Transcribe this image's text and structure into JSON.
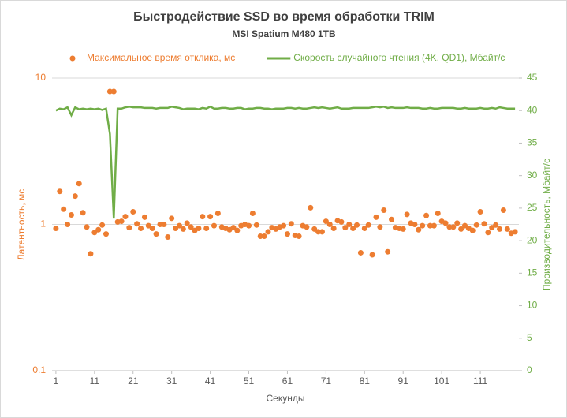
{
  "chart_data": {
    "type": "combo",
    "title": "Быстродействие SSD во время обработки TRIM",
    "subtitle": "MSI Spatium M480 1TB",
    "x_label": "Секунды",
    "y_label": "Латентность, мс",
    "y2_label": "Производительность, Мбайт/с",
    "x": [
      1,
      2,
      3,
      4,
      5,
      6,
      7,
      8,
      9,
      10,
      11,
      12,
      13,
      14,
      15,
      16,
      17,
      18,
      19,
      20,
      21,
      22,
      23,
      24,
      25,
      26,
      27,
      28,
      29,
      30,
      31,
      32,
      33,
      34,
      35,
      36,
      37,
      38,
      39,
      40,
      41,
      42,
      43,
      44,
      45,
      46,
      47,
      48,
      49,
      50,
      51,
      52,
      53,
      54,
      55,
      56,
      57,
      58,
      59,
      60,
      61,
      62,
      63,
      64,
      65,
      66,
      67,
      68,
      69,
      70,
      71,
      72,
      73,
      74,
      75,
      76,
      77,
      78,
      79,
      80,
      81,
      82,
      83,
      84,
      85,
      86,
      87,
      88,
      89,
      90,
      91,
      92,
      93,
      94,
      95,
      96,
      97,
      98,
      99,
      100,
      101,
      102,
      103,
      104,
      105,
      106,
      107,
      108,
      109,
      110,
      111,
      112,
      113,
      114,
      115,
      116,
      117,
      118,
      119,
      120
    ],
    "xlim": [
      0,
      121
    ],
    "xticks": [
      1,
      11,
      21,
      31,
      41,
      51,
      61,
      71,
      81,
      91,
      101,
      111
    ],
    "ylim": [
      0.1,
      10
    ],
    "ylog": true,
    "yticks": [
      0.1,
      1,
      10
    ],
    "y2lim": [
      0,
      45
    ],
    "y2ticks": [
      0,
      5,
      10,
      15,
      20,
      25,
      30,
      35,
      40,
      45
    ],
    "grid": true,
    "series": [
      {
        "name": "Максимальное время отклика, мс",
        "type": "scatter",
        "color": "#ed7d31",
        "values": [
          0.94,
          1.68,
          1.27,
          1.0,
          1.16,
          1.56,
          1.9,
          1.2,
          0.96,
          0.63,
          0.88,
          0.92,
          0.99,
          0.86,
          8.1,
          8.1,
          1.04,
          1.05,
          1.13,
          0.95,
          1.22,
          1.01,
          0.94,
          1.12,
          0.98,
          0.94,
          0.86,
          1.0,
          1.0,
          0.82,
          1.1,
          0.94,
          0.98,
          0.93,
          1.02,
          0.96,
          0.91,
          0.94,
          1.13,
          0.94,
          1.13,
          0.98,
          1.19,
          0.96,
          0.94,
          0.92,
          0.95,
          0.91,
          0.98,
          1.0,
          0.98,
          1.19,
          0.99,
          0.83,
          0.83,
          0.89,
          0.95,
          0.93,
          0.96,
          0.98,
          0.86,
          1.01,
          0.84,
          0.83,
          0.98,
          0.96,
          1.3,
          0.93,
          0.89,
          0.89,
          1.05,
          1.0,
          0.94,
          1.06,
          1.04,
          0.95,
          1.0,
          0.94,
          0.99,
          0.64,
          0.94,
          0.99,
          0.62,
          1.12,
          0.96,
          1.25,
          0.65,
          1.08,
          0.95,
          0.94,
          0.93,
          1.17,
          1.02,
          1.0,
          0.92,
          0.98,
          1.15,
          0.98,
          0.98,
          1.19,
          1.05,
          1.02,
          0.96,
          0.96,
          1.02,
          0.93,
          0.98,
          0.94,
          0.91,
          0.99,
          1.22,
          1.01,
          0.88,
          0.95,
          0.99,
          0.93,
          1.25,
          0.93,
          0.87,
          0.89
        ]
      },
      {
        "name": "Скорость случайного чтения (4K, QD1), Мбайт/с",
        "type": "line",
        "axis": "y2",
        "color": "#70ad47",
        "values": [
          40.0,
          40.3,
          40.2,
          40.5,
          39.3,
          40.5,
          40.2,
          40.3,
          40.2,
          40.3,
          40.2,
          40.3,
          40.1,
          40.3,
          36.4,
          23.4,
          40.3,
          40.3,
          40.5,
          40.6,
          40.5,
          40.5,
          40.5,
          40.4,
          40.4,
          40.4,
          40.3,
          40.4,
          40.4,
          40.4,
          40.6,
          40.5,
          40.4,
          40.2,
          40.3,
          40.3,
          40.3,
          40.2,
          40.4,
          40.3,
          40.6,
          40.3,
          40.3,
          40.4,
          40.4,
          40.3,
          40.3,
          40.4,
          40.4,
          40.2,
          40.3,
          40.3,
          40.4,
          40.4,
          40.3,
          40.3,
          40.2,
          40.3,
          40.3,
          40.3,
          40.4,
          40.4,
          40.3,
          40.4,
          40.3,
          40.3,
          40.4,
          40.5,
          40.4,
          40.5,
          40.4,
          40.3,
          40.4,
          40.5,
          40.3,
          40.3,
          40.3,
          40.4,
          40.4,
          40.4,
          40.4,
          40.4,
          40.5,
          40.6,
          40.5,
          40.6,
          40.4,
          40.5,
          40.4,
          40.4,
          40.4,
          40.5,
          40.4,
          40.4,
          40.4,
          40.3,
          40.3,
          40.4,
          40.3,
          40.3,
          40.4,
          40.4,
          40.4,
          40.4,
          40.3,
          40.3,
          40.4,
          40.3,
          40.3,
          40.3,
          40.4,
          40.3,
          40.3,
          40.4,
          40.3,
          40.5,
          40.4,
          40.3,
          40.3,
          40.3
        ]
      }
    ]
  }
}
